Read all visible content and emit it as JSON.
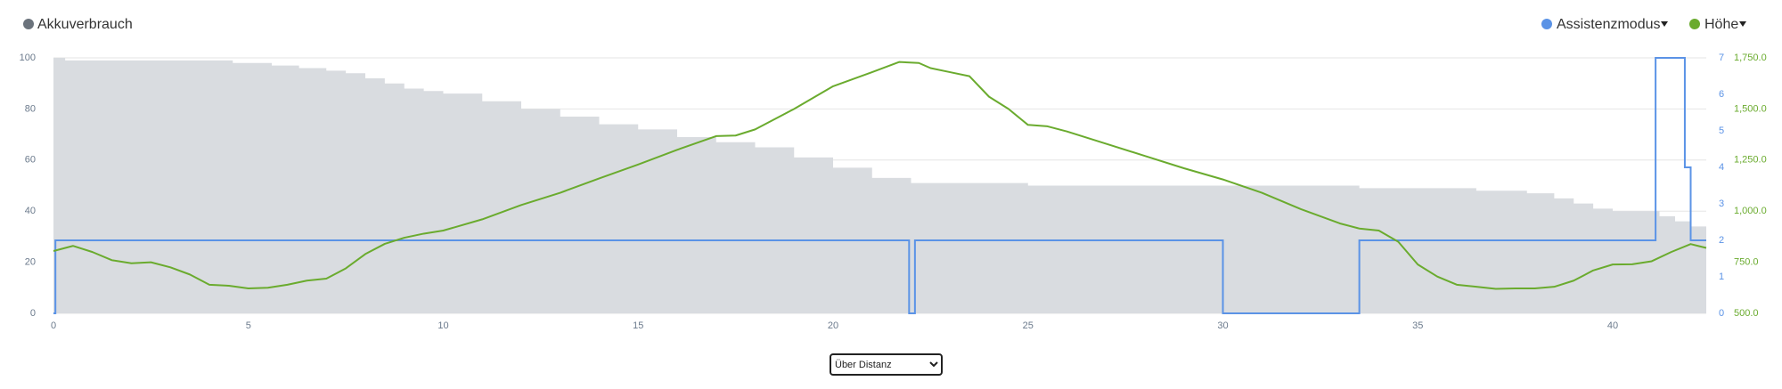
{
  "chart_data": {
    "type": "line",
    "xlim": [
      0,
      42.4
    ],
    "xticks": [
      0,
      5,
      10,
      15,
      20,
      25,
      30,
      35,
      40
    ],
    "ylim": [
      0,
      100
    ],
    "yticks": [
      0,
      20,
      40,
      60,
      80,
      100
    ],
    "y2lim": [
      0,
      7
    ],
    "y2ticks": [
      0,
      1,
      2,
      3,
      4,
      5,
      6,
      7
    ],
    "y3lim": [
      500,
      1750
    ],
    "y3ticks": [
      {
        "value": 500,
        "label": "500.0"
      },
      {
        "value": 750,
        "label": "750.0"
      },
      {
        "value": 1000,
        "label": "1,000.0"
      },
      {
        "value": 1250,
        "label": "1,250.0"
      },
      {
        "value": 1500,
        "label": "1,500.0"
      },
      {
        "value": 1750,
        "label": "1,750.0"
      }
    ],
    "grid": true,
    "series": [
      {
        "name": "Akkuverbrauch",
        "type": "step-area",
        "color": "#6b737c",
        "fill": "#d9dce0",
        "x": [
          0,
          0.3,
          4.6,
          5.6,
          6.3,
          7,
          7.5,
          8,
          8.5,
          9,
          9.5,
          10,
          11,
          12,
          13,
          14,
          15,
          16,
          17,
          18,
          19,
          20,
          21,
          22,
          25,
          33.5,
          36.5,
          37.8,
          38.5,
          39,
          39.5,
          40,
          41.2,
          41.6,
          42,
          42.4
        ],
        "values": [
          100,
          99,
          98,
          97,
          96,
          95,
          94,
          92,
          90,
          88,
          87,
          86,
          83,
          80,
          77,
          74,
          72,
          69,
          67,
          65,
          61,
          57,
          53,
          51,
          50,
          49,
          48,
          47,
          45,
          43,
          41,
          40,
          38,
          36,
          34,
          34
        ]
      },
      {
        "name": "Assistenzmodus",
        "type": "step",
        "axis": "y2",
        "color": "#5b93e6",
        "x": [
          0,
          0.05,
          21.95,
          22.1,
          30,
          33.5,
          41.1,
          41.85,
          42,
          42.4
        ],
        "values": [
          0,
          2,
          0,
          2,
          0,
          2,
          7,
          4,
          2,
          2
        ]
      },
      {
        "name": "Höhe",
        "type": "line",
        "axis": "y3",
        "color": "#6aab2e",
        "x": [
          0,
          0.5,
          1,
          1.5,
          2,
          2.5,
          3,
          3.5,
          4,
          4.5,
          5,
          5.5,
          6,
          6.5,
          7,
          7.5,
          8,
          8.5,
          9,
          9.5,
          10,
          11,
          12,
          13,
          14,
          15,
          16,
          17,
          17.5,
          18,
          19,
          20,
          21,
          21.7,
          22.2,
          22.5,
          23,
          23.5,
          24,
          24.5,
          25,
          25.5,
          26,
          27,
          28,
          29,
          30,
          31,
          32,
          33,
          33.5,
          34,
          34.5,
          35,
          35.5,
          36,
          36.5,
          37,
          37.5,
          38,
          38.5,
          39,
          39.5,
          40,
          40.5,
          41,
          41.5,
          42,
          42.4
        ],
        "values": [
          805,
          830,
          800,
          760,
          745,
          750,
          725,
          690,
          640,
          635,
          622,
          625,
          640,
          660,
          670,
          720,
          790,
          840,
          870,
          890,
          905,
          960,
          1030,
          1090,
          1160,
          1228,
          1300,
          1367,
          1370,
          1400,
          1500,
          1611,
          1680,
          1730,
          1725,
          1700,
          1680,
          1660,
          1560,
          1500,
          1422,
          1415,
          1390,
          1330,
          1270,
          1210,
          1155,
          1090,
          1010,
          940,
          915,
          905,
          850,
          739,
          680,
          640,
          630,
          620,
          622,
          622,
          630,
          660,
          710,
          739,
          740,
          755,
          800,
          839,
          820
        ]
      }
    ]
  },
  "controls": {
    "view_select": {
      "options": [
        "Über Distanz"
      ]
    }
  }
}
